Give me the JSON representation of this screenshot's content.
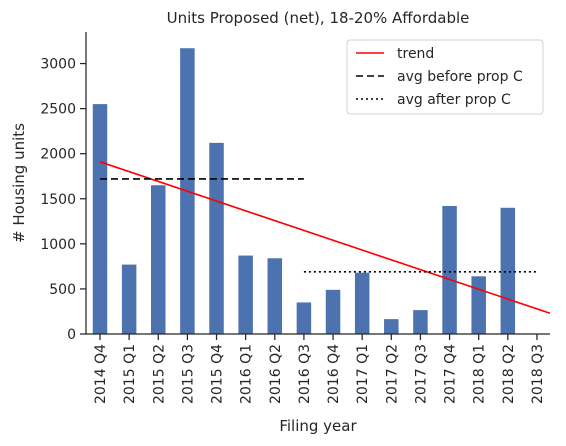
{
  "chart_data": {
    "type": "bar",
    "title": "Units Proposed (net), 18-20% Affordable",
    "xlabel": "Filing year",
    "ylabel": "# Housing units",
    "categories": [
      "2014 Q4",
      "2015 Q1",
      "2015 Q2",
      "2015 Q3",
      "2015 Q4",
      "2016 Q1",
      "2016 Q2",
      "2016 Q3",
      "2016 Q4",
      "2017 Q1",
      "2017 Q2",
      "2017 Q3",
      "2017 Q4",
      "2018 Q1",
      "2018 Q2",
      "2018 Q3"
    ],
    "values": [
      2550,
      770,
      1650,
      3170,
      2120,
      870,
      840,
      350,
      490,
      680,
      165,
      265,
      1420,
      640,
      1400,
      0
    ],
    "ylim": [
      0,
      3350
    ],
    "yticks": [
      0,
      500,
      1000,
      1500,
      2000,
      2500,
      3000
    ],
    "bar_color": "#4c72b0",
    "grid": false,
    "legend_position": "top-right",
    "lines": [
      {
        "name": "trend",
        "style": "solid",
        "color": "#ff0000",
        "x_start": "2014 Q4",
        "x_end": "beyond 2018 Q3",
        "y_start": 1910,
        "y_end": 230
      },
      {
        "name": "avg before prop C",
        "style": "dashed",
        "color": "#000000",
        "x_start": "2014 Q4",
        "x_end": "2016 Q3",
        "y": 1720
      },
      {
        "name": "avg after prop C",
        "style": "dotted",
        "color": "#000000",
        "x_start": "2016 Q3",
        "x_end": "2018 Q3",
        "y": 690
      }
    ]
  }
}
